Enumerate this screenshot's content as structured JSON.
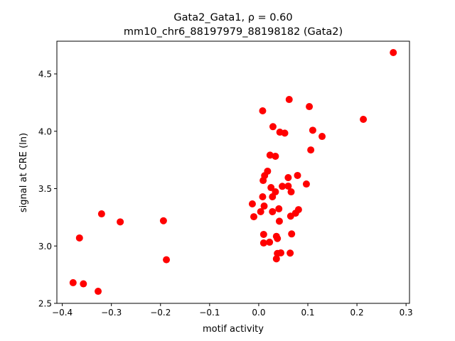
{
  "chart_data": {
    "type": "scatter",
    "title_line1": "Gata2_Gata1, ρ = 0.60",
    "title_line2": "mm10_chr6_88197979_88198182 (Gata2)",
    "xlabel": "motif activity",
    "ylabel": "signal at CRE (ln)",
    "xlim": [
      -0.411,
      0.307
    ],
    "ylim": [
      2.5,
      4.785
    ],
    "xticks": [
      -0.4,
      -0.3,
      -0.2,
      -0.1,
      0.0,
      0.1,
      0.2,
      0.3
    ],
    "xtick_labels": [
      "−0.4",
      "−0.3",
      "−0.2",
      "−0.1",
      "0.0",
      "0.1",
      "0.2",
      "0.3"
    ],
    "yticks": [
      2.5,
      3.0,
      3.5,
      4.0,
      4.5
    ],
    "ytick_labels": [
      "2.5",
      "3.0",
      "3.5",
      "4.0",
      "4.5"
    ],
    "grid": false,
    "color": "#ff0000",
    "points": [
      [
        0.062,
        4.277
      ],
      [
        0.103,
        4.215
      ],
      [
        0.008,
        4.178
      ],
      [
        0.029,
        4.04
      ],
      [
        0.043,
        3.992
      ],
      [
        0.053,
        3.984
      ],
      [
        0.11,
        4.009
      ],
      [
        0.129,
        3.955
      ],
      [
        0.106,
        3.837
      ],
      [
        0.023,
        3.792
      ],
      [
        0.034,
        3.782
      ],
      [
        0.018,
        3.652
      ],
      [
        0.012,
        3.613
      ],
      [
        0.009,
        3.571
      ],
      [
        0.06,
        3.596
      ],
      [
        0.079,
        3.615
      ],
      [
        0.097,
        3.54
      ],
      [
        0.025,
        3.509
      ],
      [
        0.034,
        3.472
      ],
      [
        0.048,
        3.52
      ],
      [
        0.06,
        3.522
      ],
      [
        0.066,
        3.472
      ],
      [
        0.008,
        3.429
      ],
      [
        0.028,
        3.429
      ],
      [
        -0.013,
        3.367
      ],
      [
        0.011,
        3.348
      ],
      [
        0.004,
        3.299
      ],
      [
        -0.01,
        3.255
      ],
      [
        0.028,
        3.299
      ],
      [
        0.041,
        3.324
      ],
      [
        0.081,
        3.317
      ],
      [
        0.075,
        3.286
      ],
      [
        0.065,
        3.26
      ],
      [
        0.042,
        3.216
      ],
      [
        0.01,
        3.101
      ],
      [
        0.036,
        3.084
      ],
      [
        0.038,
        3.065
      ],
      [
        0.067,
        3.105
      ],
      [
        0.01,
        3.026
      ],
      [
        0.022,
        3.033
      ],
      [
        0.038,
        2.935
      ],
      [
        0.045,
        2.94
      ],
      [
        0.064,
        2.938
      ],
      [
        0.036,
        2.888
      ],
      [
        0.274,
        4.686
      ],
      [
        0.213,
        4.104
      ],
      [
        -0.32,
        3.28
      ],
      [
        -0.282,
        3.21
      ],
      [
        -0.194,
        3.22
      ],
      [
        -0.365,
        3.07
      ],
      [
        -0.188,
        2.88
      ],
      [
        -0.378,
        2.68
      ],
      [
        -0.357,
        2.67
      ],
      [
        -0.327,
        2.605
      ]
    ]
  }
}
